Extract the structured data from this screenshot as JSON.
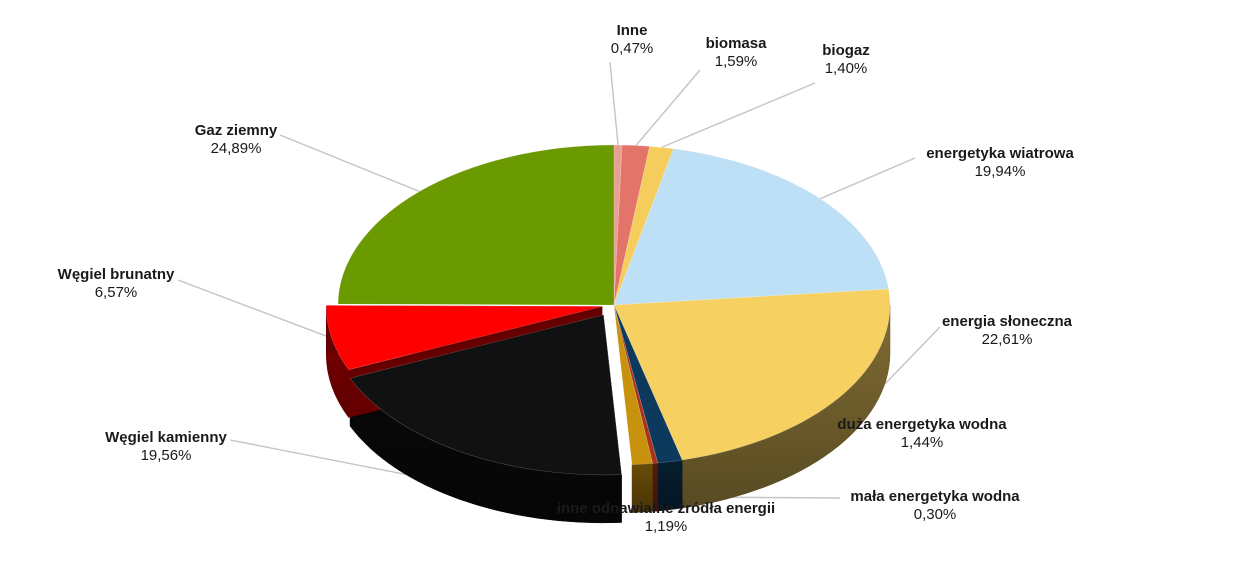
{
  "chart_data": {
    "type": "pie",
    "style": "3d-exploded-pie",
    "slices": [
      {
        "key": "inne",
        "label": "Inne",
        "value_text": "0,47%",
        "value": 0.47,
        "color": "#e8a090"
      },
      {
        "key": "biomasa",
        "label": "biomasa",
        "value_text": "1,59%",
        "value": 1.59,
        "color": "#e3746a"
      },
      {
        "key": "biogaz",
        "label": "biogaz",
        "value_text": "1,40%",
        "value": 1.4,
        "color": "#f5cd5c"
      },
      {
        "key": "wiatr",
        "label": "energetyka wiatrowa",
        "value_text": "19,94%",
        "value": 19.94,
        "color": "#bde0f7"
      },
      {
        "key": "slonce",
        "label": "energia słoneczna",
        "value_text": "22,61%",
        "value": 22.61,
        "color": "#f6d060"
      },
      {
        "key": "duza_woda",
        "label": "duża energetyka wodna",
        "value_text": "1,44%",
        "value": 1.44,
        "color": "#0d3a5c"
      },
      {
        "key": "mala_woda",
        "label": "mała energetyka wodna",
        "value_text": "0,30%",
        "value": 0.3,
        "color": "#a8321a"
      },
      {
        "key": "inne_oze",
        "label": "inne odnawialne źródła energii",
        "value_text": "1,19%",
        "value": 1.19,
        "color": "#c9920e"
      },
      {
        "key": "wegiel_k",
        "label": "Węgiel kamienny",
        "value_text": "19,56%",
        "value": 19.56,
        "color": "#111111"
      },
      {
        "key": "wegiel_b",
        "label": "Węgiel brunatny",
        "value_text": "6,57%",
        "value": 6.57,
        "color": "#ff0000"
      },
      {
        "key": "gaz",
        "label": "Gaz ziemny",
        "value_text": "24,89%",
        "value": 24.89,
        "color": "#6a9a00"
      }
    ]
  }
}
